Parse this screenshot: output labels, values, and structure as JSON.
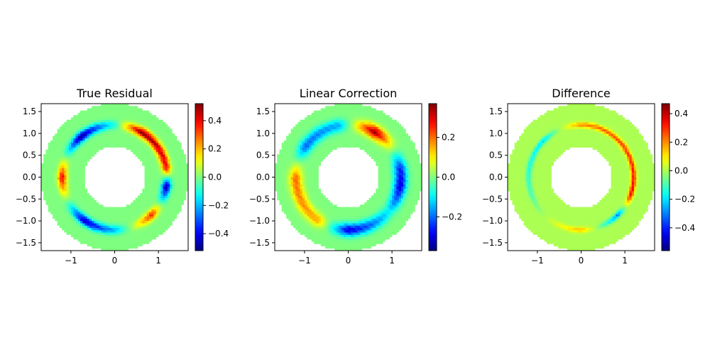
{
  "chart_data": [
    {
      "type": "heatmap",
      "title": "True Residual",
      "xlabel": "",
      "ylabel": "",
      "xlim": [
        -1.68,
        1.68
      ],
      "ylim": [
        -1.68,
        1.68
      ],
      "x_ticks": [
        -1,
        0,
        1
      ],
      "x_tick_labels": [
        "−1",
        "0",
        "1"
      ],
      "y_ticks": [
        1.5,
        1.0,
        0.5,
        0.0,
        -0.5,
        -1.0,
        -1.5
      ],
      "y_tick_labels": [
        "1.5",
        "1.0",
        "0.5",
        "0.0",
        "−0.5",
        "−1.0",
        "−1.5"
      ],
      "domain": {
        "inner_radius": 0.7,
        "outer_radius": 1.68,
        "shape": "annulus"
      },
      "feature_band": {
        "radius": 1.2,
        "width": 0.1,
        "description": "thin ring of residual values"
      },
      "colormap": "jet",
      "background_value": 0.0,
      "colorbar": {
        "min": -0.52,
        "max": 0.52,
        "ticks": [
          0.4,
          0.2,
          0.0,
          -0.2,
          -0.4
        ],
        "tick_labels": [
          "0.4",
          "0.2",
          "0.0",
          "−0.2",
          "−0.4"
        ]
      },
      "band_profile": [
        {
          "angle_deg": 10,
          "value": 0.38
        },
        {
          "angle_deg": 60,
          "value": 0.5
        },
        {
          "angle_deg": 90,
          "value": -0.1
        },
        {
          "angle_deg": 130,
          "value": -0.5
        },
        {
          "angle_deg": 180,
          "value": 0.4
        },
        {
          "angle_deg": 235,
          "value": -0.45
        },
        {
          "angle_deg": 270,
          "value": -0.2
        },
        {
          "angle_deg": 315,
          "value": 0.35
        },
        {
          "angle_deg": 350,
          "value": -0.5
        }
      ]
    },
    {
      "type": "heatmap",
      "title": "Linear Correction",
      "xlabel": "",
      "ylabel": "",
      "xlim": [
        -1.68,
        1.68
      ],
      "ylim": [
        -1.68,
        1.68
      ],
      "x_ticks": [
        -1,
        0,
        1
      ],
      "x_tick_labels": [
        "−1",
        "0",
        "1"
      ],
      "y_ticks": [
        1.5,
        1.0,
        0.5,
        0.0,
        -0.5,
        -1.0,
        -1.5
      ],
      "y_tick_labels": [
        "1.5",
        "1.0",
        "0.5",
        "0.0",
        "−0.5",
        "−1.0",
        "−1.5"
      ],
      "domain": {
        "inner_radius": 0.7,
        "outer_radius": 1.68,
        "shape": "annulus"
      },
      "feature_band": {
        "radius": 1.2,
        "width": 0.14,
        "description": "broad ring of correction values"
      },
      "colormap": "jet",
      "background_value": 0.0,
      "colorbar": {
        "min": -0.37,
        "max": 0.37,
        "ticks": [
          0.2,
          0.0,
          -0.2
        ],
        "tick_labels": [
          "0.2",
          "0.0",
          "−0.2"
        ]
      },
      "band_profile": [
        {
          "angle_deg": 10,
          "value": -0.25
        },
        {
          "angle_deg": 60,
          "value": 0.35
        },
        {
          "angle_deg": 100,
          "value": -0.15
        },
        {
          "angle_deg": 145,
          "value": -0.2
        },
        {
          "angle_deg": 180,
          "value": 0.2
        },
        {
          "angle_deg": 235,
          "value": 0.15
        },
        {
          "angle_deg": 270,
          "value": -0.3
        },
        {
          "angle_deg": 320,
          "value": -0.1
        },
        {
          "angle_deg": 350,
          "value": -0.3
        }
      ]
    },
    {
      "type": "heatmap",
      "title": "Difference",
      "xlabel": "",
      "ylabel": "",
      "xlim": [
        -1.68,
        1.68
      ],
      "ylim": [
        -1.68,
        1.68
      ],
      "x_ticks": [
        -1,
        0,
        1
      ],
      "x_tick_labels": [
        "−1",
        "0",
        "1"
      ],
      "y_ticks": [
        1.5,
        1.0,
        0.5,
        0.0,
        -0.5,
        -1.0,
        -1.5
      ],
      "y_tick_labels": [
        "1.5",
        "1.0",
        "0.5",
        "0.0",
        "−0.5",
        "−1.0",
        "−1.5"
      ],
      "domain": {
        "inner_radius": 0.7,
        "outer_radius": 1.68,
        "shape": "annulus"
      },
      "feature_band": {
        "radius": 1.2,
        "width": 0.06,
        "description": "thin noisy ring of differences"
      },
      "colormap": "jet",
      "background_value": 0.0,
      "colorbar": {
        "min": -0.56,
        "max": 0.47,
        "ticks": [
          0.4,
          0.2,
          0.0,
          -0.2,
          -0.4
        ],
        "tick_labels": [
          "0.4",
          "0.2",
          "0.0",
          "−0.2",
          "−0.4"
        ]
      },
      "band_profile": [
        {
          "angle_deg": 20,
          "value": 0.3
        },
        {
          "angle_deg": 90,
          "value": 0.2
        },
        {
          "angle_deg": 135,
          "value": -0.2
        },
        {
          "angle_deg": 200,
          "value": -0.1
        },
        {
          "angle_deg": 270,
          "value": 0.15
        },
        {
          "angle_deg": 315,
          "value": -0.3
        },
        {
          "angle_deg": 340,
          "value": 0.35
        }
      ]
    }
  ]
}
